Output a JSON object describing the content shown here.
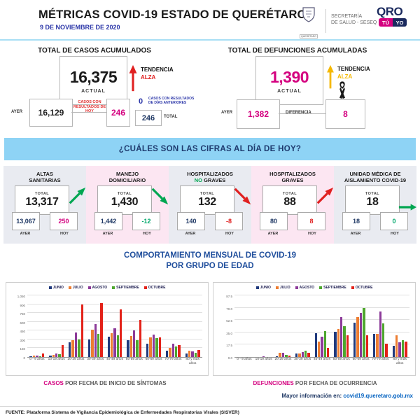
{
  "header": {
    "title": "MÉTRICAS COVID-19 ESTADO DE QUERÉTARO",
    "date": "9 DE NOVIEMBRE DE 2020",
    "crest_caption": "QUERÉTARO",
    "secretaria_line1": "SECRETARÍA",
    "secretaria_line2": "DE SALUD - SESEQ",
    "qro_logo": {
      "text": "QRO",
      "tu": "TÚ",
      "yo": "YO",
      "magenta": "#d4007f",
      "navy": "#1b2a5e"
    }
  },
  "casos": {
    "title": "TOTAL DE CASOS ACUMULADOS",
    "actual": "16,375",
    "actual_label": "ACTUAL",
    "trend_label": "TENDENCIA",
    "trend_value": "ALZA",
    "trend_color": "#e02020",
    "ayer_label": "AYER",
    "ayer": "16,129",
    "hoy_note": "CASOS CON RESULTADOS DE HOY",
    "hoy": "246",
    "hoy_color": "#d4007f",
    "anteriores": "0",
    "anteriores_note": "CASOS CON RESULTADOS DE DÍAS ANTERIORES",
    "anteriores_color": "#2b36a8",
    "total": "246",
    "total_label": "TOTAL"
  },
  "defunciones": {
    "title": "TOTAL DE DEFUNCIONES ACUMULADAS",
    "actual": "1,390",
    "actual_label": "ACTUAL",
    "trend_label": "TENDENCIA",
    "trend_value": "ALZA",
    "trend_color": "#f5b800",
    "ayer_label": "AYER",
    "ayer": "1,382",
    "diferencia_label": "DIFERENCIA",
    "diferencia": "8",
    "value_color": "#d4007f"
  },
  "banner": "¿CUÁLES SON LAS CIFRAS AL DÍA DE HOY?",
  "cards": [
    {
      "title_lines": [
        "ALTAS",
        "SANITARIAS"
      ],
      "total_label": "TOTAL",
      "total": "13,317",
      "ayer": "13,067",
      "hoy": "250",
      "hoy_color": "#d4007f",
      "arrow": "up",
      "arrow_color": "#00a651",
      "bg": "#e9ebf1",
      "ayer_label": "AYER",
      "hoy_label": "HOY"
    },
    {
      "title_lines": [
        "MANEJO",
        "DOMICILIARIO"
      ],
      "total_label": "TOTAL",
      "total": "1,430",
      "ayer": "1,442",
      "hoy": "-12",
      "hoy_color": "#00a86b",
      "arrow": "down",
      "arrow_color": "#00a651",
      "bg": "#fce6f2",
      "ayer_label": "AYER",
      "hoy_label": "HOY"
    },
    {
      "title_lines": [
        "HOSPITALIZADOS",
        "NO GRAVES"
      ],
      "highlight_word": "NO",
      "highlight_color": "#00a651",
      "total_label": "TOTAL",
      "total": "132",
      "ayer": "140",
      "hoy": "-8",
      "hoy_color": "#e02020",
      "arrow": "down",
      "arrow_color": "#e02020",
      "bg": "#e9ebf1",
      "ayer_label": "AYER",
      "hoy_label": "HOY"
    },
    {
      "title_lines": [
        "HOSPITALIZADOS",
        "GRAVES"
      ],
      "total_label": "TOTAL",
      "total": "88",
      "ayer": "80",
      "hoy": "8",
      "hoy_color": "#e02020",
      "arrow": "up",
      "arrow_color": "#e02020",
      "bg": "#fce6f2",
      "ayer_label": "AYER",
      "hoy_label": "HOY"
    },
    {
      "title_lines": [
        "UNIDAD MÉDICA DE",
        "AISLAMIENTO COVID-19"
      ],
      "total_label": "TOTAL",
      "total": "18",
      "ayer": "18",
      "hoy": "0",
      "hoy_color": "#00a86b",
      "arrow": "right",
      "arrow_color": "#00a651",
      "bg": "#e9ebf1",
      "ayer_label": "AYER",
      "hoy_label": "HOY"
    }
  ],
  "charts_section": {
    "title_line1": "COMPORTAMIENTO MENSUAL DE COVID-19",
    "title_line2": "POR GRUPO DE EDAD"
  },
  "chart_data": [
    {
      "type": "bar",
      "caption_highlight": "CASOS",
      "caption_rest": " POR FECHA DE INICIO DE SÍNTOMAS",
      "categories": [
        "0 - 9 años",
        "10-19 años",
        "20-29 años",
        "30-39 años",
        "40-49 años",
        "50-59 años",
        "60-69 años",
        "70-79 años",
        "80 y más años"
      ],
      "series": [
        {
          "name": "JUNIO",
          "color": "#203a7d",
          "values": [
            10,
            20,
            245,
            300,
            345,
            285,
            230,
            110,
            55
          ]
        },
        {
          "name": "JULIO",
          "color": "#ed7d31",
          "values": [
            20,
            35,
            290,
            460,
            400,
            355,
            330,
            160,
            110
          ]
        },
        {
          "name": "AGOSTO",
          "color": "#8c3a99",
          "values": [
            20,
            60,
            420,
            565,
            495,
            450,
            385,
            230,
            90
          ]
        },
        {
          "name": "SEPTIEMBRE",
          "color": "#4ea72e",
          "values": [
            15,
            45,
            300,
            390,
            370,
            290,
            320,
            185,
            75
          ]
        },
        {
          "name": "OCTUBRE",
          "color": "#e32219",
          "values": [
            60,
            200,
            895,
            915,
            810,
            630,
            340,
            200,
            120
          ]
        }
      ],
      "ylim": [
        0,
        1050
      ],
      "yticks": [
        "0",
        "150",
        "300",
        "450",
        "600",
        "750",
        "900",
        "1,050"
      ],
      "grid": true,
      "legend_position": "top"
    },
    {
      "type": "bar",
      "caption_highlight": "DEFUNCIONES",
      "caption_rest": " POR FECHA DE OCURRENCIA",
      "categories": [
        "0 - 9 años",
        "10-19 años",
        "20-29 años",
        "30-39 años",
        "40-49 años",
        "50-59 años",
        "60-69 años",
        "70-79 años",
        "80 y más años"
      ],
      "series": [
        {
          "name": "JUNIO",
          "color": "#203a7d",
          "values": [
            0,
            0,
            1,
            5,
            34,
            36,
            49,
            33,
            16
          ]
        },
        {
          "name": "JULIO",
          "color": "#ed7d31",
          "values": [
            0,
            0,
            6,
            5,
            22,
            40,
            57,
            33,
            31
          ]
        },
        {
          "name": "AGOSTO",
          "color": "#8c3a99",
          "values": [
            0,
            1,
            6,
            7,
            29,
            57,
            63,
            65,
            21
          ]
        },
        {
          "name": "SEPTIEMBRE",
          "color": "#4ea72e",
          "values": [
            0,
            0,
            3,
            9,
            37,
            44,
            70,
            48,
            24
          ]
        },
        {
          "name": "OCTUBRE",
          "color": "#e32219",
          "values": [
            0,
            0,
            2,
            6,
            13,
            31,
            31,
            19,
            22
          ]
        }
      ],
      "ylim": [
        0,
        87.5
      ],
      "yticks": [
        "0.0",
        "17.5",
        "35.0",
        "52.5",
        "70.0",
        "87.5"
      ],
      "grid": true,
      "legend_position": "top"
    }
  ],
  "info": {
    "label": "Mayor información en:",
    "link": "covid19.queretaro.gob.mx"
  },
  "footer": "FUENTE: Plataforma Sistema de Vigilancia Epidemiológica de Enfermedades Respiratorias Virales (SISVER)"
}
